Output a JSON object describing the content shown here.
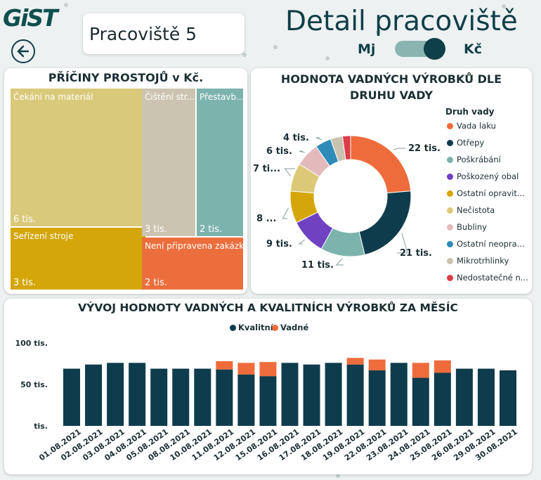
{
  "header": {
    "logo_text": "GiST",
    "workplace_title": "Pracoviště 5",
    "page_title": "Detail pracoviště",
    "toggle_left_label": "Mj",
    "toggle_right_label": "Kč",
    "toggle_selected": "Kč"
  },
  "downtime_card": {
    "title": "PŘÍČINY PROSTOJŮ v Kč.",
    "tiles": [
      {
        "label": "Čekání na materiál",
        "value_label": "6 tis.",
        "color": "#d9c97a"
      },
      {
        "label": "Seřízení stroje",
        "value_label": "3 tis.",
        "color": "#d4a60a"
      },
      {
        "label": "Čištění str...",
        "value_label": "3 tis.",
        "color": "#cbc4b0"
      },
      {
        "label": "Přestavb...",
        "value_label": "2 tis.",
        "color": "#7db3ad"
      },
      {
        "label": "Není připravena zakázk...",
        "value_label": "2 tis.",
        "color": "#ec6e3c"
      }
    ]
  },
  "defects_card": {
    "title_line1": "HODNOTA VADNÝCH VÝROBKŮ DLE",
    "title_line2": "DRUHU VADY",
    "legend_title": "Druh vady",
    "slices": [
      {
        "name": "Vada laku",
        "value": 22,
        "label": "22 tis.",
        "color": "#ee6c3b"
      },
      {
        "name": "Otřepy",
        "value": 21,
        "label": "21 tis.",
        "color": "#0f3c4c"
      },
      {
        "name": "Poškrábání",
        "value": 11,
        "label": "11 tis.",
        "color": "#7db3ad"
      },
      {
        "name": "Poškozený obal",
        "value": 9,
        "label": "9 tis.",
        "color": "#6f42c1"
      },
      {
        "name": "Ostatní opravit...",
        "value": 8,
        "label": "8 ...",
        "color": "#d4a60a"
      },
      {
        "name": "Nečistota",
        "value": 7,
        "label": "7 ti...",
        "color": "#dcc977"
      },
      {
        "name": "Bubliny",
        "value": 6,
        "label": "6 tis.",
        "color": "#e3b9bc"
      },
      {
        "name": "Ostatní neopra...",
        "value": 4,
        "label": "4 tis.",
        "color": "#2e8bb8"
      },
      {
        "name": "Mikrotrhlinky",
        "value": 3,
        "label": "",
        "color": "#c9c2ae"
      },
      {
        "name": "Nedostatečné n...",
        "value": 2,
        "label": "",
        "color": "#dd3c4a"
      }
    ]
  },
  "monthly_card": {
    "title": "VÝVOJ HODNOTY VADNÝCH A KVALITNÍCH VÝROBKŮ ZA MĚSÍC",
    "legend": [
      {
        "name": "Kvalitní",
        "color": "#0f3c4c"
      },
      {
        "name": "Vadné",
        "color": "#ee6c3b"
      }
    ]
  },
  "chart_data": {
    "type": "bar",
    "stacked": true,
    "categories": [
      "01.08.2021",
      "02.08.2021",
      "03.08.2021",
      "04.08.2021",
      "05.08.2021",
      "08.08.2021",
      "10.08.2021",
      "11.08.2021",
      "12.08.2021",
      "15.08.2021",
      "16.08.2021",
      "17.08.2021",
      "18.08.2021",
      "19.08.2021",
      "22.08.2021",
      "23.08.2021",
      "24.08.2021",
      "25.08.2021",
      "26.08.2021",
      "29.08.2021",
      "30.08.2021"
    ],
    "series": [
      {
        "name": "Kvalitní",
        "color": "#0f3c4c",
        "values": [
          69,
          74,
          76,
          76,
          69,
          69,
          69,
          68,
          62,
          60,
          76,
          74,
          76,
          74,
          67,
          76,
          58,
          64,
          69,
          69,
          67
        ]
      },
      {
        "name": "Vadné",
        "color": "#ee6c3b",
        "values": [
          0,
          0,
          0,
          0,
          0,
          0,
          0,
          10,
          14,
          17,
          0,
          0,
          0,
          8,
          13,
          0,
          18,
          15,
          0,
          0,
          0
        ]
      }
    ],
    "y_tick_labels": [
      "100 tis.",
      "50 tis.",
      "tis."
    ],
    "y_ticks": [
      100,
      50,
      0
    ],
    "ylim": [
      0,
      100
    ]
  }
}
